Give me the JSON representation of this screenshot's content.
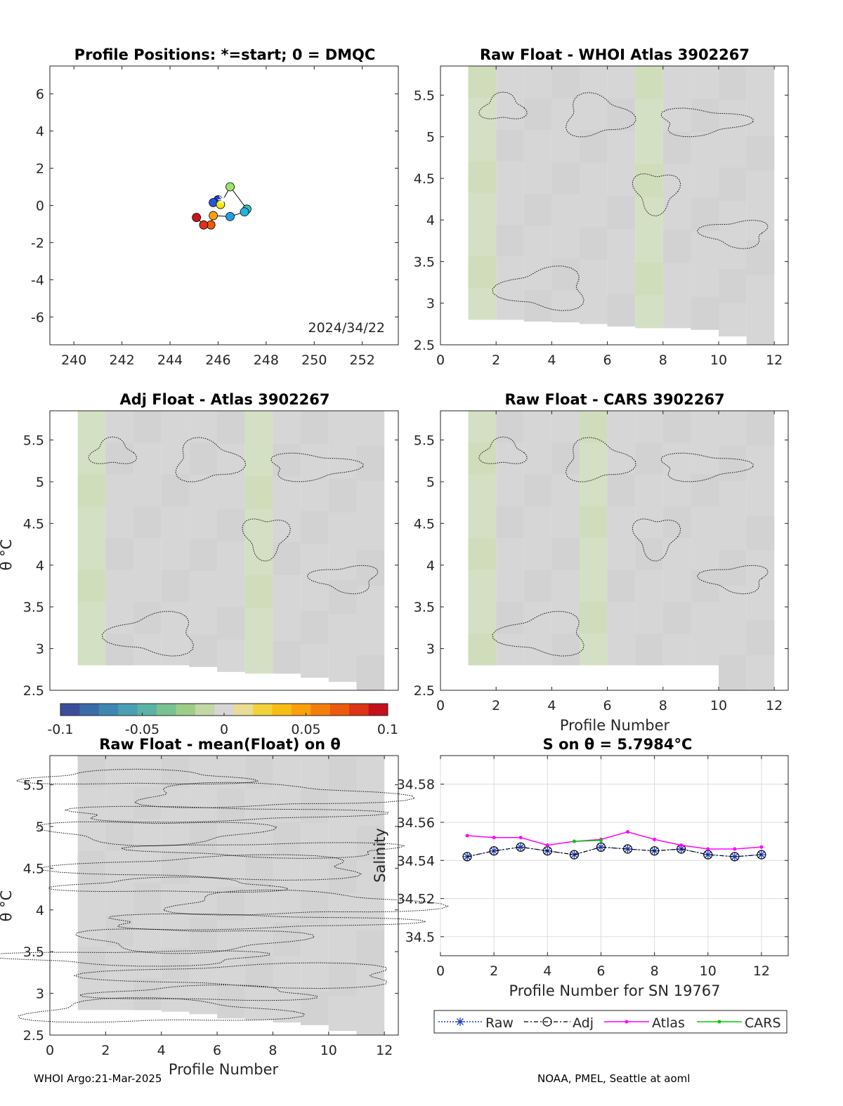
{
  "footer": {
    "left": "WHOI Argo:21-Mar-2025",
    "right": "NOAA, PMEL, Seattle at aoml"
  },
  "colors": {
    "axis": "#262626",
    "field": "#d6d6d6",
    "field_green": "#d4e0c3",
    "raw": "#1f3fbf",
    "adj": "#000000",
    "atlas": "#ff00ff",
    "cars": "#00cc00"
  },
  "colorbar": {
    "min": -0.1,
    "max": 0.1,
    "tick_labels": [
      "-0.1",
      "-0.05",
      "0",
      "0.05",
      "0.1"
    ],
    "ticks": [
      -0.1,
      -0.05,
      0,
      0.05,
      0.1
    ],
    "colormap": [
      "#3b4d9a",
      "#3a6aa8",
      "#3f86b3",
      "#4a9fb3",
      "#5bb3a5",
      "#79c291",
      "#9dcd86",
      "#c2d8a6",
      "#d6d6d6",
      "#e8dc96",
      "#f2d23a",
      "#f7bd12",
      "#f9a00b",
      "#f57e0a",
      "#ec5a0c",
      "#dc3414",
      "#c4101c"
    ]
  },
  "chart_data": [
    {
      "id": "positions",
      "type": "scatter",
      "title": "Profile Positions: *=start; 0 = DMQC",
      "annotation": "2024/34/22",
      "xlim": [
        239,
        253.5
      ],
      "ylim": [
        -7.5,
        7.5
      ],
      "xticks": [
        240,
        242,
        244,
        246,
        248,
        250,
        252
      ],
      "yticks": [
        6,
        4,
        2,
        0,
        -2,
        -4,
        -6
      ],
      "points": [
        {
          "x": 246.0,
          "y": 0.3,
          "color": "#1f40c8"
        },
        {
          "x": 245.8,
          "y": 0.15,
          "color": "#2255e0"
        },
        {
          "x": 246.1,
          "y": 0.05,
          "color": "#f2e600"
        },
        {
          "x": 246.5,
          "y": 1.0,
          "color": "#9be36a"
        },
        {
          "x": 247.2,
          "y": -0.2,
          "color": "#35c6b0"
        },
        {
          "x": 247.1,
          "y": -0.35,
          "color": "#23b2e0"
        },
        {
          "x": 246.5,
          "y": -0.6,
          "color": "#1e9fe8"
        },
        {
          "x": 245.8,
          "y": -0.55,
          "color": "#ff9f10"
        },
        {
          "x": 245.7,
          "y": -1.05,
          "color": "#ee5a0e"
        },
        {
          "x": 245.4,
          "y": -1.05,
          "color": "#e0301a"
        },
        {
          "x": 245.1,
          "y": -0.65,
          "color": "#c8141c"
        }
      ],
      "start": {
        "x": 246.2,
        "y": 0.3
      }
    },
    {
      "id": "raw_whoi",
      "type": "heatmap",
      "title": "Raw Float - WHOI Atlas  3902267",
      "xlim": [
        0,
        12.5
      ],
      "ylim": [
        2.5,
        5.85
      ],
      "xticks": [
        0,
        2,
        4,
        6,
        8,
        10,
        12
      ],
      "yticks": [
        2.5,
        3,
        3.5,
        4,
        4.5,
        5,
        5.5
      ],
      "ylabel": "",
      "xlabel": "",
      "profiles": [
        1,
        2,
        3,
        4,
        5,
        6,
        7,
        8,
        9,
        10,
        11,
        12
      ],
      "theta_min": [
        2.8,
        2.8,
        2.78,
        2.77,
        2.75,
        2.72,
        2.7,
        2.7,
        2.68,
        2.6,
        2.5,
        2.5
      ],
      "green_profiles": [
        1,
        7
      ]
    },
    {
      "id": "adj_atlas",
      "type": "heatmap",
      "title": "Adj Float - Atlas  3902267",
      "xlim": [
        0,
        12.5
      ],
      "ylim": [
        2.5,
        5.85
      ],
      "xticks": [],
      "yticks": [
        2.5,
        3,
        3.5,
        4,
        4.5,
        5,
        5.5
      ],
      "ylabel": "θ °C",
      "profiles": [
        1,
        2,
        3,
        4,
        5,
        6,
        7,
        8,
        9,
        10,
        11,
        12
      ],
      "theta_min": [
        2.8,
        2.8,
        2.8,
        2.8,
        2.78,
        2.72,
        2.7,
        2.7,
        2.65,
        2.6,
        2.5,
        2.5
      ],
      "green_profiles": [
        1,
        7
      ]
    },
    {
      "id": "raw_cars",
      "type": "heatmap",
      "title": "Raw Float - CARS  3902267",
      "xlim": [
        0,
        12.5
      ],
      "ylim": [
        2.5,
        5.85
      ],
      "xticks": [
        0,
        2,
        4,
        6,
        8,
        10,
        12
      ],
      "yticks": [
        2.5,
        3,
        3.5,
        4,
        4.5,
        5,
        5.5
      ],
      "xlabel": "Profile Number",
      "profiles": [
        1,
        2,
        3,
        4,
        5,
        6,
        7,
        8,
        9,
        10,
        11,
        12
      ],
      "theta_min": [
        2.8,
        2.8,
        2.8,
        2.8,
        2.8,
        2.8,
        2.8,
        2.8,
        2.8,
        2.5,
        2.5,
        2.5
      ],
      "green_profiles": [
        1,
        5
      ]
    },
    {
      "id": "raw_mean",
      "type": "heatmap",
      "title": "Raw Float - mean(Float) on θ",
      "xlim": [
        0,
        12.5
      ],
      "ylim": [
        2.5,
        5.85
      ],
      "xticks": [
        0,
        2,
        4,
        6,
        8,
        10,
        12
      ],
      "yticks": [
        2.5,
        3,
        3.5,
        4,
        4.5,
        5,
        5.5
      ],
      "xlabel": "Profile Number",
      "ylabel": "θ °C",
      "profiles": [
        1,
        2,
        3,
        4,
        5,
        6,
        7,
        8,
        9,
        10,
        11,
        12
      ],
      "theta_min": [
        2.8,
        2.8,
        2.8,
        2.78,
        2.75,
        2.7,
        2.68,
        2.65,
        2.62,
        2.55,
        2.5,
        2.5
      ],
      "green_profiles": []
    },
    {
      "id": "salinity",
      "type": "line",
      "title": "S on θ = 5.7984°C",
      "xlim": [
        0,
        13
      ],
      "ylim": [
        34.49,
        34.595
      ],
      "xticks": [
        0,
        2,
        4,
        6,
        8,
        10,
        12
      ],
      "yticks": [
        34.5,
        34.52,
        34.54,
        34.56,
        34.58
      ],
      "xlabel": "Profile Number for SN 19767",
      "ylabel": "Salinity",
      "grid": true,
      "legend_position": "below",
      "series": [
        {
          "name": "Raw",
          "x": [
            1,
            2,
            3,
            4,
            5,
            6,
            7,
            8,
            9,
            10,
            11,
            12
          ],
          "y": [
            34.542,
            34.545,
            34.547,
            34.545,
            34.543,
            34.547,
            34.546,
            34.545,
            34.546,
            34.543,
            34.542,
            34.543
          ]
        },
        {
          "name": "Adj",
          "x": [
            1,
            2,
            3,
            4,
            5,
            6,
            7,
            8,
            9,
            10,
            11,
            12
          ],
          "y": [
            34.542,
            34.545,
            34.547,
            34.545,
            34.543,
            34.547,
            34.546,
            34.545,
            34.546,
            34.543,
            34.542,
            34.543
          ]
        },
        {
          "name": "Atlas",
          "x": [
            1,
            2,
            3,
            4,
            5,
            6,
            7,
            8,
            9,
            10,
            11,
            12
          ],
          "y": [
            34.553,
            34.552,
            34.552,
            34.548,
            34.55,
            34.551,
            34.555,
            34.551,
            34.548,
            34.546,
            34.546,
            34.547
          ]
        },
        {
          "name": "CARS",
          "x": [
            5,
            6
          ],
          "y": [
            34.55,
            34.5505
          ]
        }
      ]
    }
  ]
}
